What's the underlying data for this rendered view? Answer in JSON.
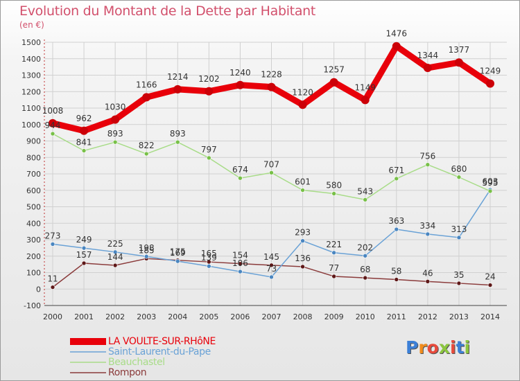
{
  "title": "Evolution du Montant de la Dette par Habitant",
  "subtitle": "(en €)",
  "logo": {
    "letters": [
      "P",
      "r",
      "o",
      "x",
      "i",
      "t",
      "i"
    ],
    "colors": [
      "#3b7fd6",
      "#f28c1c",
      "#e84a3c",
      "#8cc63f",
      "#e84a3c",
      "#3b7fd6",
      "#8cc63f"
    ]
  },
  "chart_data": {
    "type": "line",
    "x": [
      "2000",
      "2001",
      "2002",
      "2003",
      "2004",
      "2005",
      "2006",
      "2007",
      "2008",
      "2009",
      "2010",
      "2011",
      "2012",
      "2013",
      "2014"
    ],
    "ylim": [
      -100,
      1500
    ],
    "yticks": [
      -100,
      0,
      100,
      200,
      300,
      400,
      500,
      600,
      700,
      800,
      900,
      1000,
      1100,
      1200,
      1300,
      1400,
      1500
    ],
    "grid": true,
    "legend_position": "bottom-left",
    "series": [
      {
        "name": "LA VOULTE-SUR-RHôNE",
        "color": "#e8000a",
        "point_color": "#cc0008",
        "values": [
          1008,
          962,
          1030,
          1166,
          1214,
          1202,
          1240,
          1228,
          1120,
          1257,
          1149,
          1476,
          1344,
          1377,
          1249
        ],
        "labels": [
          "1008",
          "962",
          "1030",
          "1166",
          "1214",
          "1202",
          "1240",
          "1228",
          "1120",
          "1257",
          "1149",
          "1476",
          "1344",
          "1377",
          "1249"
        ]
      },
      {
        "name": "Saint-Laurent-du-Pape",
        "color": "#6aa2d6",
        "point_color": "#4a86c0",
        "values": [
          273,
          249,
          225,
          198,
          169,
          139,
          106,
          73,
          293,
          221,
          202,
          363,
          334,
          313,
          603
        ],
        "labels": [
          "273",
          "249",
          "225",
          "198",
          "169",
          "139",
          "106",
          "73",
          "293",
          "221",
          "202",
          "363",
          "334",
          "313",
          "603"
        ]
      },
      {
        "name": "Beauchastel",
        "color": "#a8dc88",
        "point_color": "#78c048",
        "values": [
          944,
          841,
          893,
          822,
          893,
          797,
          674,
          707,
          601,
          580,
          543,
          671,
          756,
          680,
          595
        ],
        "labels": [
          "944",
          "841",
          "893",
          "822",
          "893",
          "797",
          "674",
          "707",
          "601",
          "580",
          "543",
          "671",
          "756",
          "680",
          "595"
        ]
      },
      {
        "name": "Rompon",
        "color": "#8a3a3a",
        "point_color": "#5e1818",
        "values": [
          11,
          157,
          144,
          185,
          175,
          165,
          154,
          145,
          136,
          77,
          68,
          58,
          46,
          35,
          24
        ],
        "labels": [
          "11",
          "157",
          "144",
          "185",
          "175",
          "165",
          "154",
          "145",
          "136",
          "77",
          "68",
          "58",
          "46",
          "35",
          "24"
        ]
      }
    ]
  }
}
